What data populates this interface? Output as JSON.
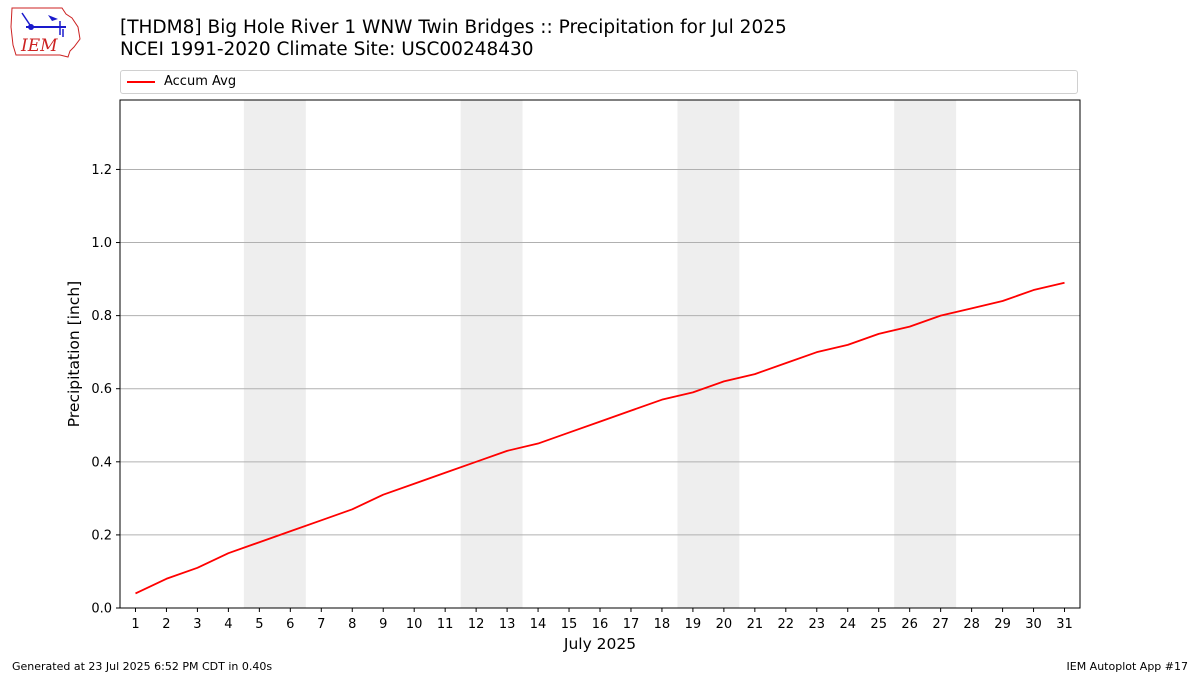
{
  "header": {
    "title_line1": "[THDM8] Big Hole River 1 WNW Twin Bridges :: Precipitation for Jul 2025",
    "title_line2": "NCEI 1991-2020 Climate Site: USC00248430",
    "logo_text": "IEM"
  },
  "footer": {
    "left": "Generated at 23 Jul 2025 6:52 PM CDT in 0.40s",
    "right": "IEM Autoplot App #17"
  },
  "colors": {
    "line": "#ff0000",
    "weekend_band": "#eeeeee",
    "grid": "#b0b0b0",
    "logo_blue": "#1a1acc",
    "logo_red": "#cc2222"
  },
  "chart_data": {
    "type": "line",
    "xlabel": "July 2025",
    "ylabel": "Precipitation [inch]",
    "xlim": [
      0.5,
      31.5
    ],
    "ylim": [
      0,
      1.39
    ],
    "yticks": [
      0.0,
      0.2,
      0.4,
      0.6,
      0.8,
      1.0,
      1.2
    ],
    "ytick_labels": [
      "0.0",
      "0.2",
      "0.4",
      "0.6",
      "0.8",
      "1.0",
      "1.2"
    ],
    "x": [
      1,
      2,
      3,
      4,
      5,
      6,
      7,
      8,
      9,
      10,
      11,
      12,
      13,
      14,
      15,
      16,
      17,
      18,
      19,
      20,
      21,
      22,
      23,
      24,
      25,
      26,
      27,
      28,
      29,
      30,
      31
    ],
    "xtick_labels": [
      "1",
      "2",
      "3",
      "4",
      "5",
      "6",
      "7",
      "8",
      "9",
      "10",
      "11",
      "12",
      "13",
      "14",
      "15",
      "16",
      "17",
      "18",
      "19",
      "20",
      "21",
      "22",
      "23",
      "24",
      "25",
      "26",
      "27",
      "28",
      "29",
      "30",
      "31"
    ],
    "series": [
      {
        "name": "Accum Avg",
        "values": [
          0.04,
          0.08,
          0.11,
          0.15,
          0.18,
          0.21,
          0.24,
          0.27,
          0.31,
          0.34,
          0.37,
          0.4,
          0.43,
          0.45,
          0.48,
          0.51,
          0.54,
          0.57,
          0.59,
          0.62,
          0.64,
          0.67,
          0.7,
          0.72,
          0.75,
          0.77,
          0.8,
          0.82,
          0.84,
          0.87,
          0.89
        ]
      }
    ],
    "weekend_bands": [
      [
        4.5,
        6.5
      ],
      [
        11.5,
        13.5
      ],
      [
        18.5,
        20.5
      ],
      [
        25.5,
        27.5
      ]
    ],
    "grid": "horizontal",
    "legend_placement": "top"
  }
}
